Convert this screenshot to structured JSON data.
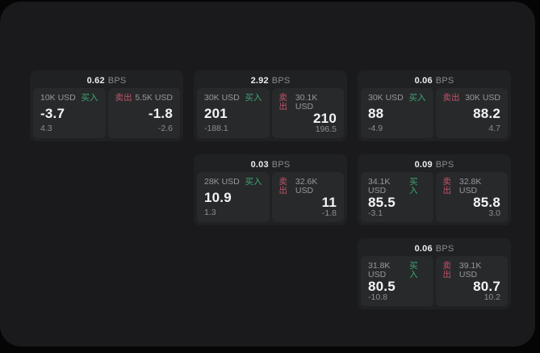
{
  "labels": {
    "bps": "BPS",
    "buy": "买入",
    "sell": "卖出"
  },
  "colors": {
    "page_bg": "#050506",
    "panel_bg": "#1a1a1c",
    "card_bg": "#202123",
    "tile_bg": "#28292b",
    "buy_accent": "#3ba873",
    "sell_accent": "#c05468",
    "value_text": "#f4f4f5",
    "muted_text": "#98999c"
  },
  "cards": [
    {
      "bps": "0.62",
      "buy": {
        "amount": "10K USD",
        "value": "-3.7",
        "sub": "4.3"
      },
      "sell": {
        "amount": "5.5K USD",
        "value": "-1.8",
        "sub": "-2.6"
      }
    },
    {
      "bps": "2.92",
      "buy": {
        "amount": "30K USD",
        "value": "201",
        "sub": "-188.1"
      },
      "sell": {
        "amount": "30.1K USD",
        "value": "210",
        "sub": "196.5"
      }
    },
    {
      "bps": "0.06",
      "buy": {
        "amount": "30K USD",
        "value": "88",
        "sub": "-4.9"
      },
      "sell": {
        "amount": "30K USD",
        "value": "88.2",
        "sub": "4.7"
      }
    },
    {
      "bps": "0.03",
      "buy": {
        "amount": "28K USD",
        "value": "10.9",
        "sub": "1.3"
      },
      "sell": {
        "amount": "32.6K USD",
        "value": "11",
        "sub": "-1.8"
      }
    },
    {
      "bps": "0.09",
      "buy": {
        "amount": "34.1K USD",
        "value": "85.5",
        "sub": "-3.1"
      },
      "sell": {
        "amount": "32.8K USD",
        "value": "85.8",
        "sub": "3.0"
      }
    },
    {
      "bps": "0.06",
      "buy": {
        "amount": "31.8K USD",
        "value": "80.5",
        "sub": "-10.8"
      },
      "sell": {
        "amount": "39.1K USD",
        "value": "80.7",
        "sub": "10.2"
      }
    }
  ]
}
